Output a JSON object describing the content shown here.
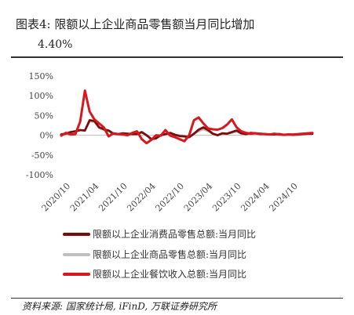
{
  "header": {
    "title_line1": "图表4:  限额以上企业商品零售额当月同比增加",
    "title_line2": "4.40%"
  },
  "footer": {
    "source": "资料来源: 国家统计局, iFinD, 万联证券研究所"
  },
  "chart_data": {
    "type": "line",
    "ylim": [
      -100,
      150
    ],
    "yticks": [
      150,
      100,
      50,
      0,
      -50,
      -100
    ],
    "ytick_labels": [
      "150%",
      "100%",
      "50%",
      "0%",
      "-50%",
      "-100%"
    ],
    "xtick_labels": [
      "2020/10",
      "2021/04",
      "2021/10",
      "2022/04",
      "2022/10",
      "2023/04",
      "2023/10",
      "2024/04",
      "2024/10"
    ],
    "x_start": "2020/08",
    "x_tick_every": 6,
    "legend_position": "bottom",
    "series": [
      {
        "name": "限额以上企业消费品零售总额:当月同比",
        "color": "#7a0c0c",
        "values": [
          2,
          4,
          8,
          10,
          13,
          12,
          38,
          36,
          20,
          15,
          12,
          4,
          3,
          5,
          4,
          3,
          3,
          8,
          0,
          -10,
          -8,
          0,
          3,
          6,
          1,
          -2,
          -3,
          -5,
          4,
          14,
          20,
          13,
          4,
          0,
          5,
          4,
          8,
          12,
          5,
          3,
          6,
          5,
          3,
          3,
          2,
          2,
          3,
          1,
          2,
          1,
          2,
          3,
          4,
          4
        ]
      },
      {
        "name": "限额以上企业商品零售总额:当月同比",
        "color": "#bfbfbf",
        "values": [
          3,
          5,
          9,
          11,
          13,
          12,
          35,
          34,
          18,
          13,
          11,
          3,
          2,
          5,
          3,
          4,
          3,
          7,
          1,
          -8,
          -7,
          0,
          2,
          5,
          2,
          0,
          -1,
          -4,
          3,
          10,
          15,
          10,
          3,
          0,
          4,
          3,
          6,
          9,
          4,
          3,
          5,
          5,
          4,
          3,
          3,
          3,
          4,
          2,
          3,
          2,
          3,
          4,
          4,
          4.4
        ]
      },
      {
        "name": "限额以上企业餐饮收入总额:当月同比",
        "color": "#d7181f",
        "values": [
          -1,
          6,
          2,
          3,
          35,
          113,
          60,
          40,
          30,
          20,
          -3,
          5,
          3,
          2,
          0,
          6,
          10,
          -10,
          -20,
          -12,
          0,
          -1,
          13,
          -1,
          -5,
          -10,
          -15,
          0,
          38,
          45,
          30,
          17,
          15,
          14,
          18,
          27,
          40,
          20,
          10,
          6,
          4,
          5,
          4,
          3,
          2,
          4,
          2,
          1,
          2,
          2,
          3,
          4,
          5,
          6
        ]
      }
    ]
  }
}
